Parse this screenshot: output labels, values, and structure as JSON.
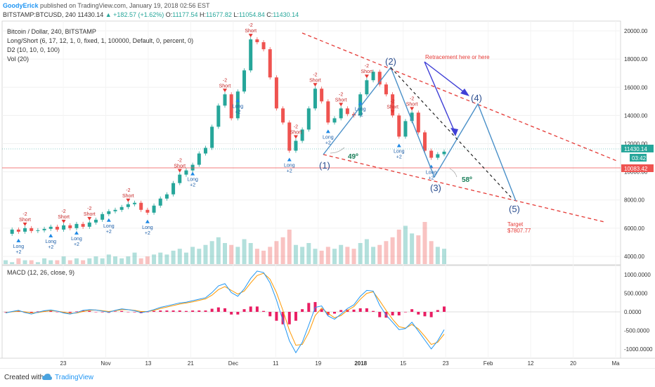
{
  "header": {
    "user": "GoodyErick",
    "published": "published on TradingView.com, January 19, 2018 02:56 EST",
    "symbol": "BITSTAMP:BTCUSD, 240",
    "last": "11430.14",
    "change": "▲ +182.57 (+1.62%)",
    "o_label": "O:",
    "o": "11177.54",
    "h_label": "H:",
    "h": "11677.82",
    "l_label": "L:",
    "l": "11054.84",
    "c_label": "C:",
    "c": "11430.14"
  },
  "legend": {
    "main": "Bitcoin / Dollar, 240, BITSTAMP",
    "ls": "Long/Short (6, 17, 12, 1, 0, fixed, 1, 100000, Default, 0, percent, 0)",
    "d2": "D2 (10, 10, 0, 100)",
    "vol": "Vol (20)",
    "macd": "MACD (12, 26, close, 9)"
  },
  "annotations": {
    "retracement": "Retracement here or here",
    "wave1": "(1)",
    "wave2": "(2)",
    "wave3": "(3)",
    "wave4": "(4)",
    "wave5": "(5)",
    "angle1": "49º",
    "angle2": "58º",
    "target": "Target",
    "target_value": "$7807.77",
    "short": "Short",
    "long": "Long",
    "m2": "-2",
    "p2": "+2"
  },
  "price_badges": {
    "last": "11430.14",
    "timer": "03:42",
    "level": "10083.42"
  },
  "footer": {
    "created": "Created with",
    "brand": "TradingView"
  },
  "colors": {
    "up": "#26a69a",
    "down": "#ef5350",
    "macd": "#2196f3",
    "signal": "#ff9800",
    "hist_pos": "#e91e63",
    "wave": "#4a90c8",
    "red_dash": "#e53935",
    "blue_arrow": "#3f3fd6"
  },
  "chart_data": [
    {
      "type": "line",
      "title": "Bitcoin / Dollar, 240, BITSTAMP",
      "note": "candlestick price series, approximated as 4h close path",
      "x_ticks": [
        "23",
        "Nov",
        "13",
        "21",
        "Dec",
        "11",
        "19",
        "2018",
        "15",
        "23",
        "Feb",
        "12",
        "20",
        "Ma"
      ],
      "y_ticks": [
        "20000.00",
        "18000.00",
        "16000.00",
        "14000.00",
        "12000.00",
        "10000.00",
        "8000.00",
        "6000.00",
        "4000.00"
      ],
      "ylim": [
        3400,
        20700
      ],
      "series": [
        {
          "values": [
            5600,
            5900,
            5750,
            6000,
            5800,
            5850,
            5950,
            6100,
            5900,
            6200,
            6000,
            6300,
            6100,
            6400,
            6600,
            7000,
            7200,
            7300,
            7500,
            7700,
            7800,
            7300,
            7100,
            7600,
            8100,
            8400,
            9200,
            9800,
            10100,
            10500,
            11300,
            11700,
            13200,
            14700,
            15500,
            13800,
            15700,
            17200,
            19400,
            19200,
            18700,
            16700,
            14500,
            13500,
            11500,
            12200,
            13000,
            14500,
            15900,
            15000,
            13500,
            13800,
            14500,
            14100,
            14000,
            15500,
            16500,
            17100,
            16200,
            15500,
            14000,
            12500,
            13600,
            14200,
            12800,
            11500,
            11000,
            11250,
            11430
          ]
        }
      ],
      "levels": [
        {
          "name": "last",
          "value": 11430.14
        },
        {
          "name": "target",
          "value": 7807.77
        },
        {
          "name": "level",
          "value": 10083.42
        }
      ]
    },
    {
      "type": "bar",
      "title": "Vol (20)",
      "values": [
        2,
        1,
        3,
        2,
        2,
        1,
        3,
        2,
        2,
        4,
        2,
        3,
        2,
        3,
        4,
        3,
        5,
        4,
        3,
        4,
        6,
        3,
        4,
        5,
        6,
        5,
        7,
        8,
        6,
        9,
        8,
        10,
        12,
        14,
        11,
        10,
        9,
        13,
        11,
        8,
        7,
        9,
        12,
        14,
        18,
        10,
        9,
        11,
        8,
        7,
        9,
        8,
        10,
        9,
        8,
        11,
        13,
        9,
        10,
        12,
        14,
        18,
        20,
        16,
        15,
        22,
        12,
        9,
        8
      ]
    },
    {
      "type": "line",
      "title": "MACD (12, 26, close, 9)",
      "y_ticks": [
        "1000.0000",
        "500.0000",
        "0.0000",
        "-500.0000",
        "-1000.0000"
      ],
      "ylim": [
        -1250,
        1250
      ],
      "series": [
        {
          "name": "MACD",
          "values": [
            -30,
            10,
            40,
            -20,
            -60,
            -10,
            30,
            50,
            20,
            -30,
            -60,
            -20,
            40,
            60,
            50,
            20,
            -10,
            40,
            80,
            60,
            30,
            -20,
            10,
            60,
            120,
            160,
            200,
            240,
            260,
            300,
            340,
            380,
            520,
            700,
            760,
            520,
            420,
            620,
            900,
            1100,
            1060,
            780,
            320,
            -240,
            -780,
            -1100,
            -820,
            -360,
            120,
            160,
            -110,
            -200,
            -60,
            90,
            190,
            420,
            580,
            560,
            180,
            -90,
            -280,
            -480,
            -450,
            -280,
            -520,
            -760,
            -1000,
            -780,
            -480
          ]
        },
        {
          "name": "Signal",
          "values": [
            -20,
            0,
            20,
            0,
            -30,
            -20,
            10,
            30,
            20,
            -10,
            -40,
            -30,
            10,
            40,
            50,
            30,
            10,
            30,
            60,
            60,
            40,
            10,
            10,
            40,
            90,
            130,
            170,
            210,
            240,
            270,
            310,
            350,
            450,
            600,
            680,
            580,
            480,
            560,
            780,
            980,
            1040,
            880,
            520,
            40,
            -500,
            -900,
            -880,
            -560,
            -100,
            100,
            -40,
            -160,
            -100,
            40,
            140,
            340,
            500,
            540,
            300,
            40,
            -200,
            -400,
            -440,
            -340,
            -460,
            -660,
            -880,
            -820,
            -600
          ]
        }
      ]
    }
  ]
}
